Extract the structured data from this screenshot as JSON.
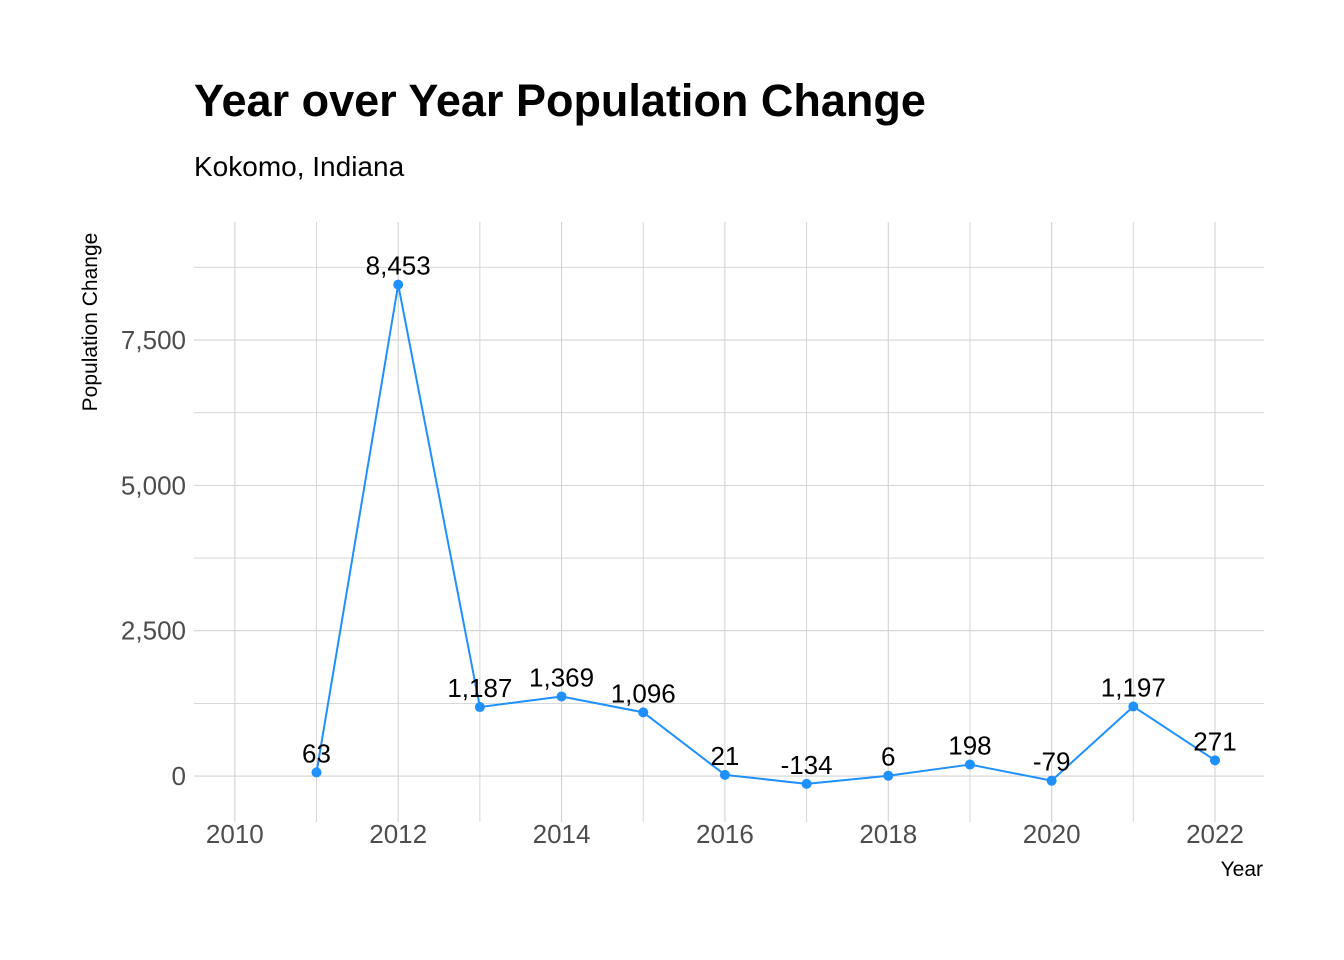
{
  "chart_data": {
    "type": "line",
    "title": "Year over Year Population Change",
    "subtitle": "Kokomo, Indiana",
    "xlabel": "Year",
    "ylabel": "Population Change",
    "x": [
      2011,
      2012,
      2013,
      2014,
      2015,
      2016,
      2017,
      2018,
      2019,
      2020,
      2021,
      2022
    ],
    "series": [
      {
        "values": [
          63,
          8453,
          1187,
          1369,
          1096,
          21,
          -134,
          6,
          198,
          -79,
          1197,
          271
        ],
        "labels": [
          "63",
          "8,453",
          "1,187",
          "1,369",
          "1,096",
          "21",
          "-134",
          "6",
          "198",
          "-79",
          "1,197",
          "271"
        ],
        "color": "#1E90FF"
      }
    ],
    "xlim": [
      2009.5,
      2022.6
    ],
    "ylim": [
      -790,
      9530
    ],
    "x_ticks": [
      2010,
      2012,
      2014,
      2016,
      2018,
      2020,
      2022
    ],
    "x_tick_labels": [
      "2010",
      "2012",
      "2014",
      "2016",
      "2018",
      "2020",
      "2022"
    ],
    "y_ticks": [
      0,
      2500,
      5000,
      7500
    ],
    "y_tick_labels": [
      "0",
      "2,500",
      "5,000",
      "7,500"
    ],
    "grid": true,
    "legend": "none"
  }
}
